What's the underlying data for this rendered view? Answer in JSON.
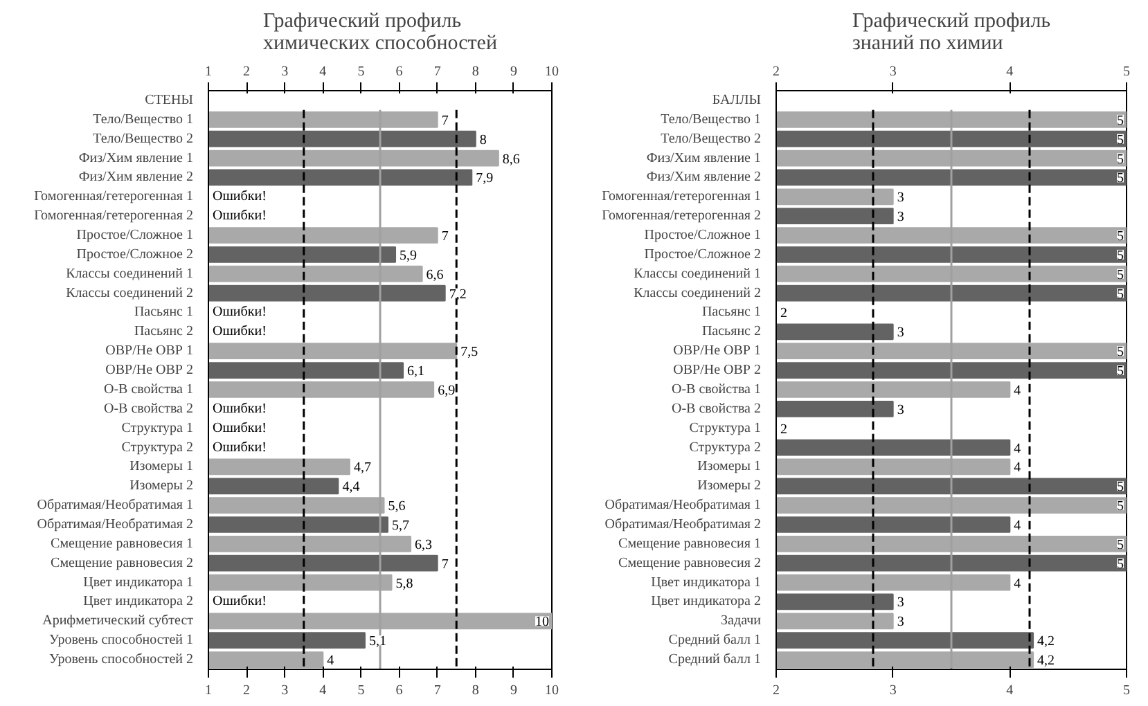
{
  "chart_data": [
    {
      "type": "bar",
      "orientation": "horizontal",
      "title": "Графический профиль\nхимических способностей",
      "ylabel": "СТЕНЫ",
      "categories": [
        "Тело/Вещество 1",
        "Тело/Вещество 2",
        "Физ/Хим явление 1",
        "Физ/Хим явление 2",
        "Гомогенная/гетерогенная 1",
        "Гомогенная/гетерогенная 2",
        "Простое/Сложное 1",
        "Простое/Сложное 2",
        "Классы соединений 1",
        "Классы соединений 2",
        "Пасьянс 1",
        "Пасьянс 2",
        "ОВР/Не ОВР 1",
        "ОВР/Не ОВР 2",
        "О-В свойства 1",
        "О-В свойства 2",
        "Структура 1",
        "Структура 2",
        "Изомеры 1",
        "Изомеры 2",
        "Обратимая/Необратимая 1",
        "Обратимая/Необратимая 2",
        "Смещение равновесия 1",
        "Смещение равновесия 2",
        "Цвет индикатора 1",
        "Цвет индикатора 2",
        "Арифметический субтест",
        "Уровень способностей 1",
        "Уровень способностей 2"
      ],
      "values": [
        7,
        8,
        8.6,
        7.9,
        null,
        null,
        7,
        5.9,
        6.6,
        7.2,
        null,
        null,
        7.5,
        6.1,
        6.9,
        null,
        null,
        null,
        4.7,
        4.4,
        5.6,
        5.7,
        6.3,
        7,
        5.8,
        null,
        10,
        5.1,
        4
      ],
      "value_labels": [
        "7",
        "8",
        "8,6",
        "7,9",
        "Ошибки!",
        "Ошибки!",
        "7",
        "5,9",
        "6,6",
        "7,2",
        "Ошибки!",
        "Ошибки!",
        "7,5",
        "6,1",
        "6,9",
        "Ошибки!",
        "Ошибки!",
        "Ошибки!",
        "4,7",
        "4,4",
        "5,6",
        "5,7",
        "6,3",
        "7",
        "5,8",
        "Ошибки!",
        "10",
        "5,1",
        "4"
      ],
      "colors": [
        "#a9a9a9",
        "#636363",
        "#a9a9a9",
        "#636363",
        "#a9a9a9",
        "#636363",
        "#a9a9a9",
        "#636363",
        "#a9a9a9",
        "#636363",
        "#a9a9a9",
        "#636363",
        "#a9a9a9",
        "#636363",
        "#a9a9a9",
        "#636363",
        "#a9a9a9",
        "#636363",
        "#a9a9a9",
        "#636363",
        "#a9a9a9",
        "#636363",
        "#a9a9a9",
        "#636363",
        "#a9a9a9",
        "#636363",
        "#a9a9a9",
        "#636363",
        "#a9a9a9"
      ],
      "xlim": [
        1,
        10
      ],
      "xticks": [
        1,
        2,
        3,
        4,
        5,
        6,
        7,
        8,
        9,
        10
      ],
      "x2lim": [
        1,
        10
      ],
      "x2ticks": [
        1,
        2,
        3,
        4,
        5,
        6,
        7,
        8,
        9,
        10
      ],
      "ref_lines": [
        {
          "axis": "x",
          "value": 3.5,
          "label": null,
          "color": "#000000",
          "line_style": "dashed"
        },
        {
          "axis": "x",
          "value": 5.5,
          "label": null,
          "color": "#a0a0a0",
          "line_style": "solid"
        },
        {
          "axis": "x",
          "value": 7.5,
          "label": null,
          "color": "#000000",
          "line_style": "dashed"
        }
      ]
    },
    {
      "type": "bar",
      "orientation": "horizontal",
      "title": "Графический профиль\nзнаний по химии",
      "ylabel": "БАЛЛЫ",
      "categories": [
        "Тело/Вещество 1",
        "Тело/Вещество 2",
        "Физ/Хим явление 1",
        "Физ/Хим явление 2",
        "Гомогенная/гетерогенная 1",
        "Гомогенная/гетерогенная 2",
        "Простое/Сложное 1",
        "Простое/Сложное 2",
        "Классы соединений 1",
        "Классы соединений 2",
        "Пасьянс 1",
        "Пасьянс 2",
        "ОВР/Не ОВР 1",
        "ОВР/Не ОВР 2",
        "О-В свойства 1",
        "О-В свойства 2",
        "Структура 1",
        "Структура 2",
        "Изомеры 1",
        "Изомеры 2",
        "Обратимая/Необратимая 1",
        "Обратимая/Необратимая 2",
        "Смещение равновесия 1",
        "Смещение равновесия 2",
        "Цвет индикатора 1",
        "Цвет индикатора 2",
        "Задачи",
        "Средний балл 1",
        "Средний балл 1"
      ],
      "values": [
        5,
        5,
        5,
        5,
        3,
        3,
        5,
        5,
        5,
        5,
        2,
        3,
        5,
        5,
        4,
        3,
        2,
        4,
        4,
        5,
        5,
        4,
        5,
        5,
        4,
        3,
        3,
        4.2,
        4.2
      ],
      "value_labels": [
        "5",
        "5",
        "5",
        "5",
        "3",
        "3",
        "5",
        "5",
        "5",
        "5",
        "2",
        "3",
        "5",
        "5",
        "4",
        "3",
        "2",
        "4",
        "4",
        "5",
        "5",
        "4",
        "5",
        "5",
        "4",
        "3",
        "3",
        "4,2",
        "4,2"
      ],
      "colors": [
        "#a9a9a9",
        "#636363",
        "#a9a9a9",
        "#636363",
        "#a9a9a9",
        "#636363",
        "#a9a9a9",
        "#636363",
        "#a9a9a9",
        "#636363",
        "#a9a9a9",
        "#636363",
        "#a9a9a9",
        "#636363",
        "#a9a9a9",
        "#636363",
        "#a9a9a9",
        "#636363",
        "#a9a9a9",
        "#636363",
        "#a9a9a9",
        "#636363",
        "#a9a9a9",
        "#636363",
        "#a9a9a9",
        "#636363",
        "#a9a9a9",
        "#636363",
        "#a9a9a9"
      ],
      "xlim": [
        2,
        5
      ],
      "xticks": [
        2,
        3,
        4,
        5
      ],
      "x2lim": [
        2,
        5
      ],
      "x2ticks": [
        2,
        3,
        4,
        5
      ],
      "ref_lines": [
        {
          "axis": "x",
          "value": 2.83,
          "label": null,
          "color": "#000000",
          "line_style": "dashed"
        },
        {
          "axis": "x",
          "value": 3.5,
          "label": null,
          "color": "#a0a0a0",
          "line_style": "solid"
        },
        {
          "axis": "x",
          "value": 4.17,
          "label": null,
          "color": "#000000",
          "line_style": "dashed"
        }
      ]
    }
  ]
}
